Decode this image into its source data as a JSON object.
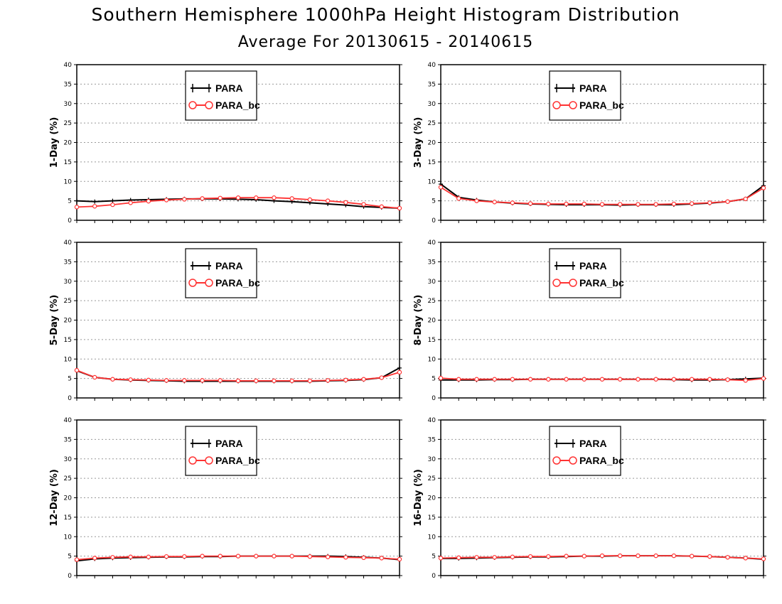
{
  "header": {
    "title": "Southern Hemisphere 1000hPa Height Histogram Distribution",
    "subtitle": "Average For 20130615 - 20140615"
  },
  "colors": {
    "para": "#000000",
    "para_bc": "#ff3333",
    "grid": "#999999"
  },
  "chart_data": [
    {
      "type": "line",
      "ylabel": "1-Day (%)",
      "ylim": [
        0,
        40
      ],
      "yticks": [
        "0",
        "5",
        "10",
        "15",
        "20",
        "25",
        "30",
        "35",
        "40"
      ],
      "grid": "dotted-horizontal",
      "legend": "top-center",
      "series": [
        {
          "name": "PARA",
          "marker": "plus",
          "values": [
            5.0,
            4.8,
            5.0,
            5.2,
            5.3,
            5.4,
            5.5,
            5.5,
            5.5,
            5.4,
            5.3,
            5.0,
            4.8,
            4.5,
            4.2,
            3.9,
            3.5,
            3.3,
            3.1
          ]
        },
        {
          "name": "PARA_bc",
          "marker": "circle",
          "values": [
            3.4,
            3.6,
            4.0,
            4.5,
            4.9,
            5.2,
            5.4,
            5.6,
            5.7,
            5.8,
            5.8,
            5.8,
            5.6,
            5.3,
            5.0,
            4.6,
            4.1,
            3.5,
            3.1
          ]
        }
      ]
    },
    {
      "type": "line",
      "ylabel": "3-Day (%)",
      "ylim": [
        0,
        40
      ],
      "yticks": [
        "0",
        "5",
        "10",
        "15",
        "20",
        "25",
        "30",
        "35",
        "40"
      ],
      "grid": "dotted-horizontal",
      "legend": "top-center",
      "series": [
        {
          "name": "PARA",
          "marker": "plus",
          "values": [
            9.3,
            5.9,
            5.2,
            4.7,
            4.4,
            4.2,
            4.1,
            4.0,
            4.0,
            4.0,
            3.9,
            4.0,
            4.0,
            4.0,
            4.2,
            4.4,
            4.8,
            5.5,
            8.9
          ]
        },
        {
          "name": "PARA_bc",
          "marker": "circle",
          "values": [
            8.5,
            5.6,
            5.0,
            4.7,
            4.5,
            4.3,
            4.2,
            4.2,
            4.2,
            4.1,
            4.1,
            4.1,
            4.1,
            4.2,
            4.3,
            4.5,
            4.8,
            5.5,
            8.3
          ]
        }
      ]
    },
    {
      "type": "line",
      "ylabel": "5-Day (%)",
      "ylim": [
        0,
        40
      ],
      "yticks": [
        "0",
        "5",
        "10",
        "15",
        "20",
        "25",
        "30",
        "35",
        "40"
      ],
      "grid": "dotted-horizontal",
      "legend": "top-center",
      "series": [
        {
          "name": "PARA",
          "marker": "plus",
          "values": [
            7.0,
            5.3,
            4.8,
            4.6,
            4.5,
            4.4,
            4.3,
            4.3,
            4.3,
            4.3,
            4.3,
            4.3,
            4.3,
            4.3,
            4.4,
            4.5,
            4.7,
            5.2,
            7.7
          ]
        },
        {
          "name": "PARA_bc",
          "marker": "circle",
          "values": [
            7.1,
            5.3,
            4.8,
            4.7,
            4.6,
            4.5,
            4.5,
            4.5,
            4.5,
            4.4,
            4.4,
            4.4,
            4.4,
            4.4,
            4.5,
            4.6,
            4.8,
            5.2,
            6.6
          ]
        }
      ]
    },
    {
      "type": "line",
      "ylabel": "8-Day (%)",
      "ylim": [
        0,
        40
      ],
      "yticks": [
        "0",
        "5",
        "10",
        "15",
        "20",
        "25",
        "30",
        "35",
        "40"
      ],
      "grid": "dotted-horizontal",
      "legend": "top-center",
      "series": [
        {
          "name": "PARA",
          "marker": "plus",
          "values": [
            4.6,
            4.6,
            4.6,
            4.7,
            4.7,
            4.8,
            4.8,
            4.8,
            4.8,
            4.8,
            4.8,
            4.8,
            4.8,
            4.7,
            4.6,
            4.6,
            4.7,
            4.9,
            5.1
          ]
        },
        {
          "name": "PARA_bc",
          "marker": "circle",
          "values": [
            5.1,
            4.8,
            4.8,
            4.8,
            4.8,
            4.8,
            4.8,
            4.8,
            4.8,
            4.8,
            4.8,
            4.8,
            4.8,
            4.8,
            4.8,
            4.8,
            4.7,
            4.5,
            5.0
          ]
        }
      ]
    },
    {
      "type": "line",
      "ylabel": "12-Day (%)",
      "ylim": [
        0,
        40
      ],
      "yticks": [
        "0",
        "5",
        "10",
        "15",
        "20",
        "25",
        "30",
        "35",
        "40"
      ],
      "grid": "dotted-horizontal",
      "legend": "top-center",
      "series": [
        {
          "name": "PARA",
          "marker": "plus",
          "values": [
            3.8,
            4.3,
            4.5,
            4.6,
            4.7,
            4.8,
            4.8,
            4.9,
            4.9,
            5.0,
            5.0,
            5.0,
            5.0,
            5.0,
            5.0,
            4.9,
            4.7,
            4.5,
            4.1
          ]
        },
        {
          "name": "PARA_bc",
          "marker": "circle",
          "values": [
            4.1,
            4.5,
            4.7,
            4.8,
            4.8,
            4.9,
            4.9,
            5.0,
            5.0,
            5.0,
            5.0,
            5.0,
            5.0,
            4.9,
            4.8,
            4.7,
            4.6,
            4.5,
            4.2
          ]
        }
      ]
    },
    {
      "type": "line",
      "ylabel": "16-Day (%)",
      "ylim": [
        0,
        40
      ],
      "yticks": [
        "0",
        "5",
        "10",
        "15",
        "20",
        "25",
        "30",
        "35",
        "40"
      ],
      "grid": "dotted-horizontal",
      "legend": "top-center",
      "series": [
        {
          "name": "PARA",
          "marker": "plus",
          "values": [
            4.4,
            4.4,
            4.5,
            4.6,
            4.7,
            4.8,
            4.8,
            4.9,
            5.0,
            5.0,
            5.1,
            5.1,
            5.1,
            5.1,
            5.0,
            4.9,
            4.7,
            4.5,
            4.2
          ]
        },
        {
          "name": "PARA_bc",
          "marker": "circle",
          "values": [
            4.5,
            4.6,
            4.7,
            4.7,
            4.8,
            4.9,
            4.9,
            5.0,
            5.0,
            5.1,
            5.1,
            5.1,
            5.1,
            5.1,
            5.0,
            4.9,
            4.7,
            4.5,
            4.3
          ]
        }
      ]
    }
  ]
}
